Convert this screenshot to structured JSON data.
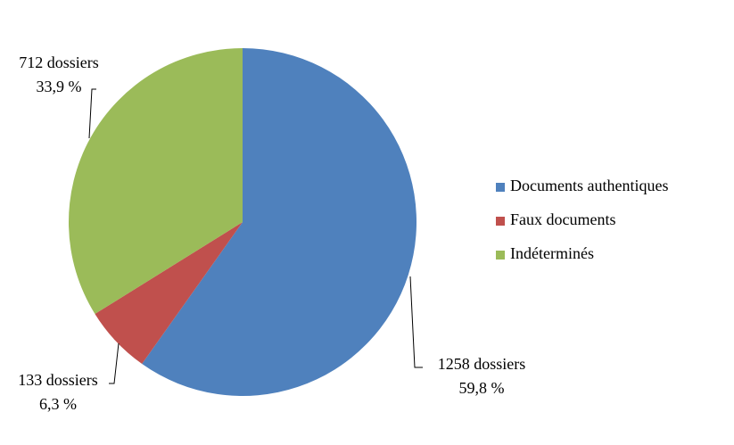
{
  "chart_data": {
    "type": "pie",
    "categories": [
      "Documents authentiques",
      "Faux documents",
      "Indéterminés"
    ],
    "values": [
      1258,
      133,
      712
    ],
    "value_labels": [
      "1258 dossiers",
      "133 dossiers",
      "712 dossiers"
    ],
    "percents": [
      59.8,
      6.3,
      33.9
    ],
    "percent_labels": [
      "59,8 %",
      "6,3 %",
      "33,9 %"
    ],
    "colors": [
      "#4f81bd",
      "#c0504d",
      "#9bbb59"
    ],
    "legend": "right"
  }
}
